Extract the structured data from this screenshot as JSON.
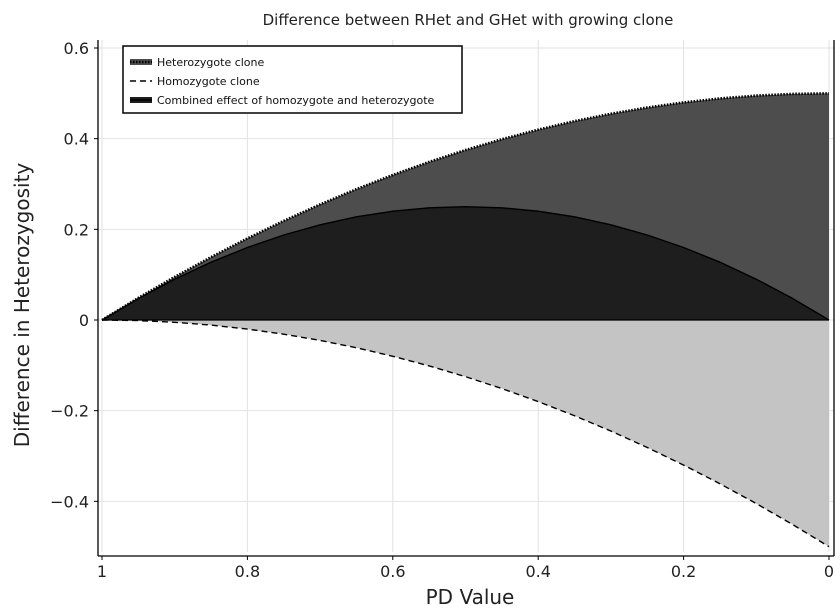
{
  "chart_data": {
    "type": "area",
    "title": "Difference between RHet and GHet with growing clone",
    "xlabel": "PD Value",
    "ylabel": "Difference in Heterozygosity",
    "xlim": [
      1,
      0
    ],
    "x_reversed": true,
    "ylim": [
      -0.5,
      0.6
    ],
    "grid": true,
    "legend_position": "top-left",
    "x_ticks": [
      1,
      0.8,
      0.6,
      0.4,
      0.2,
      0
    ],
    "x_tick_labels": [
      "1",
      "0.8",
      "0.6",
      "0.4",
      "0.2",
      "0"
    ],
    "y_ticks": [
      0.6,
      0.4,
      0.2,
      0,
      -0.2,
      -0.4
    ],
    "y_tick_labels": [
      "0.6",
      "0.4",
      "0.2",
      "0",
      "−0.2",
      "−0.4"
    ],
    "x": [
      1,
      0.95,
      0.9,
      0.85,
      0.8,
      0.75,
      0.7,
      0.65,
      0.6,
      0.55,
      0.5,
      0.45,
      0.4,
      0.35,
      0.3,
      0.25,
      0.2,
      0.15,
      0.1,
      0.05,
      0
    ],
    "series": [
      {
        "name": "Heterozygote clone",
        "line_style": "dotted",
        "fill_color": "#4d4d4d",
        "values": [
          0,
          0.04875,
          0.095,
          0.13875,
          0.18,
          0.21875,
          0.255,
          0.28875,
          0.32,
          0.34875,
          0.375,
          0.39875,
          0.42,
          0.43875,
          0.455,
          0.46875,
          0.48,
          0.48875,
          0.495,
          0.49875,
          0.5
        ]
      },
      {
        "name": "Homozygote clone",
        "line_style": "dashed",
        "fill_color": "#c4c4c4",
        "values": [
          0,
          -0.00125,
          -0.005,
          -0.01125,
          -0.02,
          -0.03125,
          -0.045,
          -0.06125,
          -0.08,
          -0.10125,
          -0.125,
          -0.15125,
          -0.18,
          -0.21125,
          -0.245,
          -0.28125,
          -0.32,
          -0.36125,
          -0.405,
          -0.45125,
          -0.5
        ]
      },
      {
        "name": "Combined effect of homozygote and heterozygote",
        "line_style": "solid",
        "fill_color": "#1e1e1e",
        "values": [
          0,
          0.0475,
          0.09,
          0.1275,
          0.16,
          0.1875,
          0.21,
          0.2275,
          0.24,
          0.2475,
          0.25,
          0.2475,
          0.24,
          0.2275,
          0.21,
          0.1875,
          0.16,
          0.1275,
          0.09,
          0.0475,
          0
        ]
      }
    ]
  }
}
